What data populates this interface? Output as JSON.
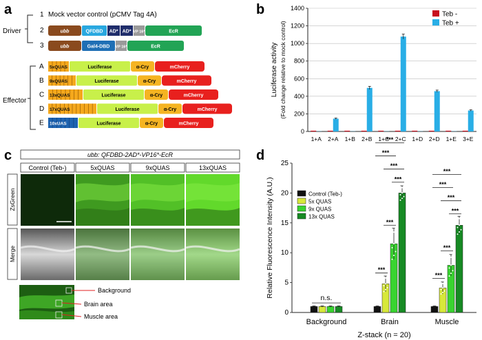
{
  "panel_letters": {
    "a": "a",
    "b": "b",
    "c": "c",
    "d": "d"
  },
  "panel_a": {
    "group_driver": "Driver",
    "group_effector": "Effector",
    "constructs": [
      {
        "id": "1",
        "text": "Mock vector control (pCMV Tag 4A)"
      },
      {
        "id": "2",
        "segments": [
          "ubb",
          "QFDBD",
          "AD*",
          "AD*",
          "VP 16*",
          "EcR"
        ]
      },
      {
        "id": "3",
        "segments": [
          "ubb",
          "Gal4-DBD",
          "VP 16*",
          "EcR"
        ]
      },
      {
        "id": "A",
        "segments": [
          "5xQUAS",
          "Luciferase",
          "α-Cry",
          "mCherry"
        ]
      },
      {
        "id": "B",
        "segments": [
          "9xQUAS",
          "Luciferase",
          "α-Cry",
          "mCherry"
        ]
      },
      {
        "id": "C",
        "segments": [
          "13xQUAS",
          "Luciferase",
          "α-Cry",
          "mCherry"
        ]
      },
      {
        "id": "D",
        "segments": [
          "17xQUAS",
          "Luciferase",
          "α-Cry",
          "mCherry"
        ]
      },
      {
        "id": "E",
        "segments": [
          "10xUAS",
          "Luciferase",
          "α-Cry",
          "mCherry"
        ]
      }
    ],
    "colors": {
      "ubb": "#8a4a1e",
      "qfdbd": "#29a8e0",
      "ad": "#1f2d6b",
      "vp16": "#9a9a9a",
      "ecr": "#22a455",
      "gal4": "#1f6fb5",
      "quas": "#f5a81c",
      "uas": "#1e63b0",
      "luciferase": "#c8f04a",
      "acry": "#f5b422",
      "mcherry": "#e8201e"
    }
  },
  "chart_b": {
    "chart_data": {
      "type": "bar",
      "title": "",
      "ylabel": "Luciferase activity",
      "ylabel2": "(Fold change relative to mock control)",
      "xlabel": "",
      "ylim": [
        0,
        1400
      ],
      "yticks": [
        "0",
        "200",
        "400",
        "600",
        "800",
        "1000",
        "1200",
        "1400"
      ],
      "grid": true,
      "legend_placement": "top-right",
      "categories": [
        "1+A",
        "2+A",
        "1+B",
        "2+B",
        "1+C",
        "2+C",
        "1+D",
        "2+D",
        "1+E",
        "3+E"
      ],
      "series": [
        {
          "name": "Teb  -",
          "color": "#c8101e",
          "values": [
            0,
            0,
            0,
            0,
            0,
            0,
            0,
            0,
            0,
            0
          ]
        },
        {
          "name": "Teb +",
          "color": "#29aee6",
          "values": [
            2,
            145,
            2,
            495,
            2,
            1078,
            2,
            458,
            2,
            238
          ],
          "err": [
            0,
            8,
            0,
            18,
            0,
            28,
            0,
            12,
            0,
            8
          ]
        }
      ]
    }
  },
  "panel_c": {
    "title": "ubb: QFDBD-2AD*-VP16*-EcR",
    "columns": [
      "Control (Teb-)",
      "5xQUAS",
      "9xQUAS",
      "13xQUAS"
    ],
    "rows": [
      "ZsGreen",
      "Merge"
    ],
    "inset_labels": [
      "Background",
      "Brain area",
      "Muscle area"
    ]
  },
  "chart_d": {
    "chart_data": {
      "type": "bar",
      "title": "",
      "ylabel": "Relative Fluorescence Intensity (A.U.)",
      "xlabel": "Z-stack (n = 20)",
      "ylim": [
        0,
        25
      ],
      "yticks": [
        "0",
        "5",
        "10",
        "15",
        "20",
        "25"
      ],
      "legend_placement": "top-left",
      "categories": [
        "Background",
        "Brain",
        "Muscle"
      ],
      "series": [
        {
          "name": "Control (Teb-)",
          "color": "#111111",
          "values": [
            1.0,
            1.0,
            1.0
          ],
          "err": [
            0.1,
            0.1,
            0.1
          ]
        },
        {
          "name": "5x QUAS",
          "color": "#d7e83a",
          "values": [
            1.0,
            4.8,
            4.1
          ],
          "err": [
            0.1,
            1.3,
            1.0
          ]
        },
        {
          "name": "9x QUAS",
          "color": "#39d430",
          "values": [
            1.0,
            11.5,
            7.9
          ],
          "err": [
            0.1,
            2.6,
            1.8
          ]
        },
        {
          "name": "13x QUAS",
          "color": "#178a24",
          "values": [
            1.0,
            20.0,
            14.6
          ],
          "err": [
            0.1,
            1.2,
            1.5
          ]
        }
      ],
      "annotations": {
        "ns": "n.s.",
        "sig": "***"
      }
    }
  }
}
